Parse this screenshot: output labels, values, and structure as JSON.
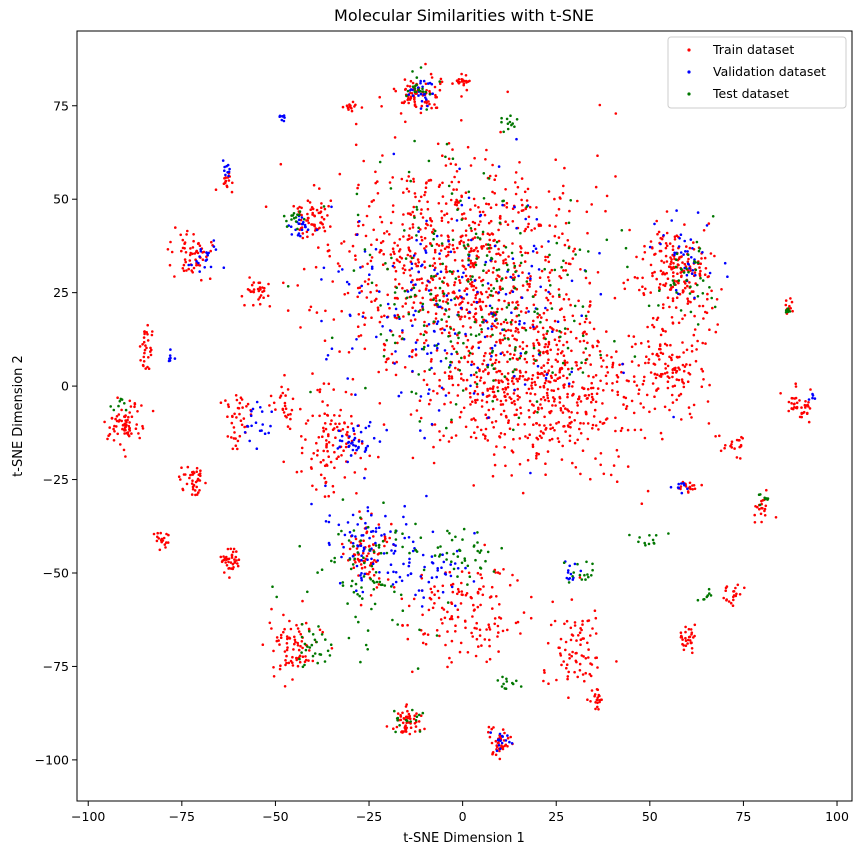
{
  "chart_data": {
    "type": "scatter",
    "title": "Molecular Similarities with t-SNE",
    "xlabel": "t-SNE Dimension 1",
    "ylabel": "t-SNE Dimension 2",
    "xlim": [
      -103,
      104
    ],
    "ylim": [
      -111,
      95
    ],
    "xticks": [
      -100,
      -75,
      -50,
      -25,
      0,
      25,
      50,
      75,
      100
    ],
    "xtick_labels": [
      "−100",
      "−75",
      "−50",
      "−25",
      "0",
      "25",
      "50",
      "75",
      "100"
    ],
    "yticks": [
      -100,
      -75,
      -50,
      -25,
      0,
      25,
      50,
      75
    ],
    "ytick_labels": [
      "−100",
      "−75",
      "−50",
      "−25",
      "0",
      "25",
      "50",
      "75"
    ],
    "grid": false,
    "legend_position": "top-right",
    "series": [
      {
        "name": "Train dataset",
        "color": "#ff0000",
        "clusters": [
          {
            "center": [
              0,
              30
            ],
            "spread": [
              30,
              28
            ],
            "n": 900
          },
          {
            "center": [
              20,
              0
            ],
            "spread": [
              25,
              20
            ],
            "n": 600
          },
          {
            "center": [
              -12,
              78
            ],
            "spread": [
              6,
              5
            ],
            "n": 80
          },
          {
            "center": [
              0,
              82
            ],
            "spread": [
              2,
              2
            ],
            "n": 20
          },
          {
            "center": [
              58,
              30
            ],
            "spread": [
              9,
              12
            ],
            "n": 200
          },
          {
            "center": [
              55,
              5
            ],
            "spread": [
              8,
              10
            ],
            "n": 120
          },
          {
            "center": [
              -90,
              -10
            ],
            "spread": [
              4,
              6
            ],
            "n": 70
          },
          {
            "center": [
              -85,
              10
            ],
            "spread": [
              2,
              5
            ],
            "n": 30
          },
          {
            "center": [
              -72,
              35
            ],
            "spread": [
              5,
              6
            ],
            "n": 60
          },
          {
            "center": [
              -72,
              -25
            ],
            "spread": [
              3,
              4
            ],
            "n": 40
          },
          {
            "center": [
              -80,
              -41
            ],
            "spread": [
              2,
              2
            ],
            "n": 20
          },
          {
            "center": [
              -62,
              -47
            ],
            "spread": [
              3,
              3
            ],
            "n": 40
          },
          {
            "center": [
              -45,
              -70
            ],
            "spread": [
              6,
              8
            ],
            "n": 80
          },
          {
            "center": [
              -15,
              -90
            ],
            "spread": [
              4,
              3
            ],
            "n": 50
          },
          {
            "center": [
              10,
              -95
            ],
            "spread": [
              3,
              4
            ],
            "n": 40
          },
          {
            "center": [
              -25,
              -45
            ],
            "spread": [
              6,
              8
            ],
            "n": 80
          },
          {
            "center": [
              0,
              -60
            ],
            "spread": [
              15,
              12
            ],
            "n": 150
          },
          {
            "center": [
              30,
              -72
            ],
            "spread": [
              8,
              10
            ],
            "n": 80
          },
          {
            "center": [
              36,
              -84
            ],
            "spread": [
              2,
              3
            ],
            "n": 20
          },
          {
            "center": [
              60,
              -67
            ],
            "spread": [
              2,
              3
            ],
            "n": 30
          },
          {
            "center": [
              72,
              -56
            ],
            "spread": [
              2,
              2
            ],
            "n": 20
          },
          {
            "center": [
              80,
              -32
            ],
            "spread": [
              2,
              3
            ],
            "n": 20
          },
          {
            "center": [
              90,
              -5
            ],
            "spread": [
              3,
              4
            ],
            "n": 40
          },
          {
            "center": [
              72,
              -15
            ],
            "spread": [
              3,
              3
            ],
            "n": 20
          },
          {
            "center": [
              60,
              -27
            ],
            "spread": [
              3,
              2
            ],
            "n": 20
          },
          {
            "center": [
              -40,
              45
            ],
            "spread": [
              4,
              5
            ],
            "n": 60
          },
          {
            "center": [
              -30,
              75
            ],
            "spread": [
              2,
              2
            ],
            "n": 15
          },
          {
            "center": [
              -63,
              55
            ],
            "spread": [
              1,
              3
            ],
            "n": 15
          },
          {
            "center": [
              87,
              21
            ],
            "spread": [
              1,
              2
            ],
            "n": 12
          },
          {
            "center": [
              -55,
              25
            ],
            "spread": [
              3,
              4
            ],
            "n": 30
          },
          {
            "center": [
              -35,
              -15
            ],
            "spread": [
              10,
              12
            ],
            "n": 120
          },
          {
            "center": [
              -60,
              -10
            ],
            "spread": [
              4,
              8
            ],
            "n": 40
          },
          {
            "center": [
              -48,
              -5
            ],
            "spread": [
              3,
              5
            ],
            "n": 25
          }
        ]
      },
      {
        "name": "Validation dataset",
        "color": "#0000ff",
        "clusters": [
          {
            "center": [
              0,
              20
            ],
            "spread": [
              30,
              28
            ],
            "n": 220
          },
          {
            "center": [
              -25,
              -40
            ],
            "spread": [
              12,
              12
            ],
            "n": 80
          },
          {
            "center": [
              -48,
              72
            ],
            "spread": [
              1,
              1
            ],
            "n": 8
          },
          {
            "center": [
              -63,
              58
            ],
            "spread": [
              1,
              2
            ],
            "n": 10
          },
          {
            "center": [
              -44,
              43
            ],
            "spread": [
              3,
              3
            ],
            "n": 20
          },
          {
            "center": [
              -70,
              35
            ],
            "spread": [
              4,
              5
            ],
            "n": 20
          },
          {
            "center": [
              -78,
              8
            ],
            "spread": [
              1,
              2
            ],
            "n": 8
          },
          {
            "center": [
              -55,
              -10
            ],
            "spread": [
              4,
              5
            ],
            "n": 20
          },
          {
            "center": [
              -28,
              -15
            ],
            "spread": [
              5,
              4
            ],
            "n": 40
          },
          {
            "center": [
              -10,
              -50
            ],
            "spread": [
              10,
              8
            ],
            "n": 50
          },
          {
            "center": [
              10,
              -95
            ],
            "spread": [
              3,
              3
            ],
            "n": 15
          },
          {
            "center": [
              58,
              -27
            ],
            "spread": [
              2,
              2
            ],
            "n": 10
          },
          {
            "center": [
              60,
              35
            ],
            "spread": [
              8,
              10
            ],
            "n": 40
          },
          {
            "center": [
              93,
              -3
            ],
            "spread": [
              1,
              1
            ],
            "n": 5
          },
          {
            "center": [
              -10,
              78
            ],
            "spread": [
              5,
              4
            ],
            "n": 25
          },
          {
            "center": [
              30,
              -50
            ],
            "spread": [
              3,
              3
            ],
            "n": 12
          }
        ]
      },
      {
        "name": "Test dataset",
        "color": "#007700",
        "clusters": [
          {
            "center": [
              5,
              25
            ],
            "spread": [
              30,
              30
            ],
            "n": 260
          },
          {
            "center": [
              -25,
              -50
            ],
            "spread": [
              15,
              18
            ],
            "n": 90
          },
          {
            "center": [
              0,
              -45
            ],
            "spread": [
              8,
              6
            ],
            "n": 40
          },
          {
            "center": [
              -10,
              80
            ],
            "spread": [
              5,
              4
            ],
            "n": 20
          },
          {
            "center": [
              12,
              70
            ],
            "spread": [
              3,
              2
            ],
            "n": 12
          },
          {
            "center": [
              -45,
              45
            ],
            "spread": [
              3,
              3
            ],
            "n": 15
          },
          {
            "center": [
              60,
              30
            ],
            "spread": [
              8,
              10
            ],
            "n": 40
          },
          {
            "center": [
              87,
              20
            ],
            "spread": [
              1,
              1
            ],
            "n": 6
          },
          {
            "center": [
              -92,
              -5
            ],
            "spread": [
              2,
              2
            ],
            "n": 8
          },
          {
            "center": [
              -40,
              -70
            ],
            "spread": [
              6,
              6
            ],
            "n": 25
          },
          {
            "center": [
              -15,
              -90
            ],
            "spread": [
              4,
              3
            ],
            "n": 15
          },
          {
            "center": [
              12,
              -80
            ],
            "spread": [
              3,
              2
            ],
            "n": 12
          },
          {
            "center": [
              32,
              -50
            ],
            "spread": [
              4,
              3
            ],
            "n": 15
          },
          {
            "center": [
              65,
              -56
            ],
            "spread": [
              2,
              2
            ],
            "n": 8
          },
          {
            "center": [
              80,
              -30
            ],
            "spread": [
              2,
              2
            ],
            "n": 8
          },
          {
            "center": [
              50,
              -41
            ],
            "spread": [
              4,
              2
            ],
            "n": 12
          }
        ]
      }
    ]
  }
}
